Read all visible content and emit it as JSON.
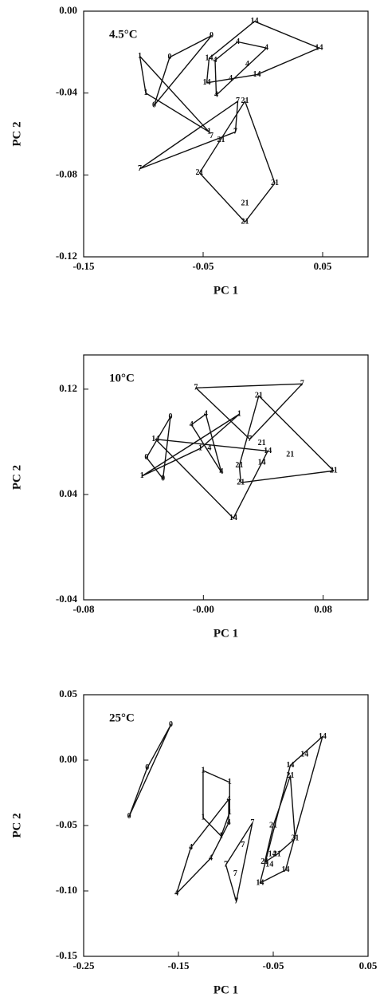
{
  "chart_data": [
    {
      "type": "scatter",
      "annotation": "4.5°C",
      "xlabel": "PC 1",
      "ylabel": "PC 2",
      "color": "#111111",
      "xlim": [
        -0.15,
        0.088
      ],
      "ylim": [
        -0.12,
        0
      ],
      "xticks": [
        -0.15,
        -0.05,
        0.05
      ],
      "yticks": [
        {
          "value": 0,
          "label": "0.00"
        },
        -0.04,
        -0.08,
        -0.12
      ],
      "series": [
        {
          "name": "0",
          "x": [
            -0.043,
            -0.078,
            -0.091
          ],
          "y": [
            -0.012,
            -0.0225,
            -0.046
          ]
        },
        {
          "name": "1",
          "x": [
            -0.103,
            -0.098,
            -0.045
          ],
          "y": [
            -0.022,
            -0.04,
            -0.059
          ]
        },
        {
          "name": "4",
          "x": [
            -0.021,
            0.003,
            -0.04,
            -0.027,
            -0.039,
            -0.013
          ],
          "y": [
            -0.015,
            -0.018,
            -0.024,
            -0.033,
            -0.041,
            -0.026
          ]
        },
        {
          "name": "7",
          "x": [
            -0.103,
            -0.043,
            -0.021,
            -0.023
          ],
          "y": [
            -0.077,
            -0.061,
            -0.044,
            -0.059
          ]
        },
        {
          "name": "14",
          "x": [
            -0.007,
            -0.045,
            -0.047,
            0.047,
            -0.005
          ],
          "y": [
            -0.005,
            -0.023,
            -0.035,
            -0.018,
            -0.031
          ]
        },
        {
          "name": "21",
          "x": [
            -0.035,
            -0.053,
            -0.015,
            0.01,
            -0.015,
            -0.015
          ],
          "y": [
            -0.063,
            -0.079,
            -0.044,
            -0.084,
            -0.094,
            -0.103
          ]
        }
      ]
    },
    {
      "type": "scatter",
      "annotation": "10°C",
      "xlabel": "PC 1",
      "ylabel": "PC 2",
      "color": "#111111",
      "xlim": [
        -0.08,
        0.11
      ],
      "ylim": [
        -0.04,
        0.146
      ],
      "xticks": [
        -0.08,
        {
          "value": 0,
          "label": "-0.00"
        },
        0.08
      ],
      "yticks": [
        0.12,
        0.04,
        -0.04
      ],
      "series": [
        {
          "name": "0",
          "x": [
            -0.022,
            -0.038,
            -0.027
          ],
          "y": [
            0.099,
            0.068,
            0.052
          ]
        },
        {
          "name": "1",
          "x": [
            -0.041,
            -0.002,
            0.024
          ],
          "y": [
            0.054,
            0.075,
            0.101
          ]
        },
        {
          "name": "4",
          "x": [
            0.0016,
            -0.008,
            0.004,
            0.012
          ],
          "y": [
            0.101,
            0.093,
            0.075,
            0.057
          ]
        },
        {
          "name": "7",
          "x": [
            -0.005,
            0.031,
            0.066
          ],
          "y": [
            0.121,
            0.082,
            0.124
          ]
        },
        {
          "name": "14",
          "x": [
            -0.032,
            0.043,
            0.02,
            0.039
          ],
          "y": [
            0.082,
            0.073,
            0.022,
            0.064
          ]
        },
        {
          "name": "21",
          "x": [
            0.037,
            0.039,
            0.024,
            0.025,
            0.058,
            0.087
          ],
          "y": [
            0.115,
            0.079,
            0.062,
            0.049,
            0.07,
            0.058
          ]
        }
      ]
    },
    {
      "type": "scatter",
      "annotation": "25°C",
      "xlabel": "PC 1",
      "ylabel": "PC 2",
      "color": "#111111",
      "xlim": [
        -0.25,
        0.05
      ],
      "ylim": [
        -0.15,
        0.05
      ],
      "xticks": [
        -0.25,
        -0.15,
        -0.05,
        0.05
      ],
      "yticks": [
        0.05,
        {
          "value": 0,
          "label": "0.00"
        },
        -0.05,
        {
          "value": -0.1,
          "label": "-0.10"
        },
        -0.15
      ],
      "series": [
        {
          "name": "0",
          "x": [
            -0.158,
            -0.183,
            -0.202
          ],
          "y": [
            0.027,
            -0.006,
            -0.043
          ]
        },
        {
          "name": "1",
          "x": [
            -0.124,
            -0.096,
            -0.096,
            -0.124,
            -0.105
          ],
          "y": [
            -0.008,
            -0.017,
            -0.04,
            -0.044,
            -0.058
          ]
        },
        {
          "name": "4",
          "x": [
            -0.097,
            -0.097,
            -0.137,
            -0.116,
            -0.152
          ],
          "y": [
            -0.03,
            -0.048,
            -0.067,
            -0.075,
            -0.102
          ]
        },
        {
          "name": "7",
          "x": [
            -0.072,
            -0.082,
            -0.1,
            -0.09,
            -0.089
          ],
          "y": [
            -0.048,
            -0.065,
            -0.08,
            -0.087,
            -0.108
          ]
        },
        {
          "name": "14",
          "x": [
            0.002,
            -0.017,
            -0.032,
            -0.051,
            -0.054,
            -0.037,
            -0.064
          ],
          "y": [
            0.018,
            0.004,
            -0.004,
            -0.072,
            -0.08,
            -0.084,
            -0.094
          ]
        },
        {
          "name": "21",
          "x": [
            -0.032,
            -0.05,
            -0.027,
            -0.046,
            -0.059
          ],
          "y": [
            -0.012,
            -0.05,
            -0.06,
            -0.072,
            -0.078
          ]
        }
      ]
    }
  ]
}
